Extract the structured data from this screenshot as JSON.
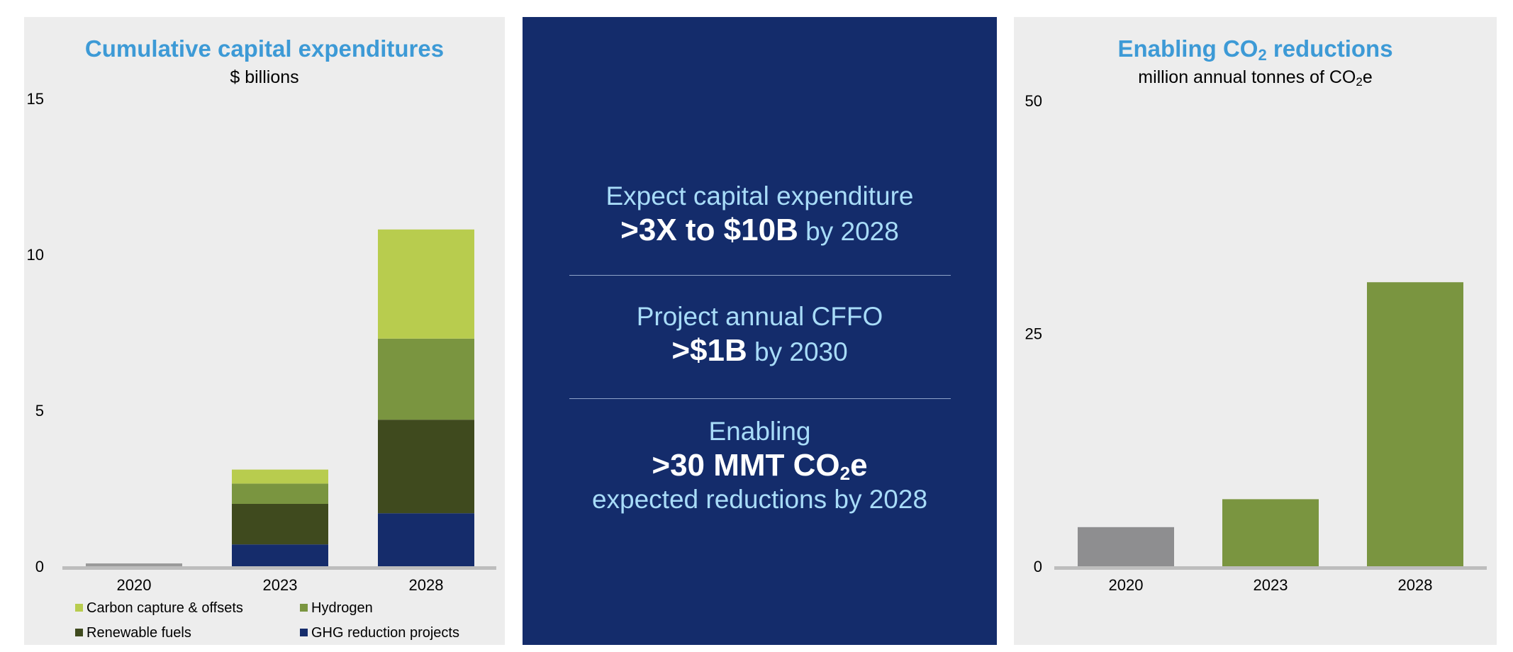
{
  "chart_data": [
    {
      "type": "bar",
      "stacked": true,
      "title": "Cumulative capital expenditures",
      "subtitle": "$ billions",
      "categories": [
        "2020",
        "2023",
        "2028"
      ],
      "yticks": [
        "0",
        "5",
        "10",
        "15"
      ],
      "ylim": [
        0,
        15
      ],
      "legend_position": "bottom",
      "series": [
        {
          "name": "GHG reduction projects",
          "color": "#152c6b",
          "values": [
            0.06,
            0.7,
            1.7
          ]
        },
        {
          "name": "Renewable fuels",
          "color": "#3f4a1e",
          "values": [
            0.02,
            1.3,
            3.0
          ]
        },
        {
          "name": "Hydrogen",
          "color": "#7a9540",
          "values": [
            0.0,
            0.65,
            2.6
          ]
        },
        {
          "name": "Carbon capture & offsets",
          "color": "#b8cc4e",
          "values": [
            0.0,
            0.45,
            3.5
          ]
        }
      ],
      "zero_bar_color": "#9a9a9a"
    },
    {
      "type": "bar",
      "title": "Enabling CO",
      "title_sub": "2",
      "title_rest": " reductions",
      "subtitle": "million annual tonnes of CO",
      "subtitle_sub": "2",
      "subtitle_rest": "e",
      "categories": [
        "2020",
        "2023",
        "2028"
      ],
      "yticks": [
        "0",
        "25",
        "50"
      ],
      "ylim": [
        0,
        50
      ],
      "values": [
        4.2,
        7.2,
        30.5
      ],
      "colors": [
        "#8e8e90",
        "#7a9540",
        "#7a9540"
      ]
    }
  ],
  "middle": {
    "line1": "Expect capital expenditure",
    "line2_bold": ">3X to $10B",
    "line2_light": " by 2028",
    "line3": "Project annual CFFO",
    "line4_bold": ">$1B",
    "line4_light": " by 2030",
    "line5": "Enabling",
    "line6_bold": ">30 MMT CO",
    "line6_sub": "2",
    "line6_end": "e",
    "line7": "expected reductions by 2028"
  }
}
